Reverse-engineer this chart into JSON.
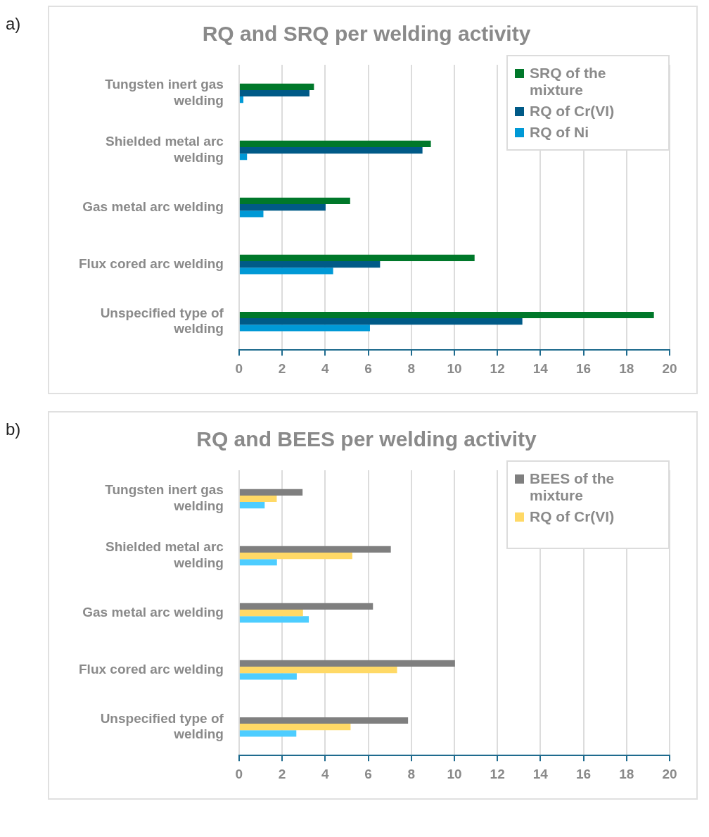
{
  "chart_data": [
    {
      "type": "bar",
      "orientation": "horizontal",
      "title": "RQ and SRQ per welding activity",
      "annotations": [
        "a)"
      ],
      "categories": [
        "Tungsten inert gas welding",
        "Shielded metal arc welding",
        "Gas metal arc welding",
        "Flux cored arc welding",
        "Unspecified type of welding"
      ],
      "series": [
        {
          "name": "SRQ of the mixture",
          "color": "#00782a",
          "values": [
            3.48,
            8.91,
            5.16,
            10.94,
            19.27
          ]
        },
        {
          "name": "RQ of Cr(VI)",
          "color": "#005a87",
          "values": [
            3.27,
            8.52,
            4.02,
            6.55,
            13.16
          ]
        },
        {
          "name": "RQ of Ni",
          "color": "#0099d6",
          "values": [
            0.2,
            0.37,
            1.13,
            4.37,
            6.08
          ]
        }
      ],
      "xlim": [
        0,
        20
      ],
      "xticks": [
        0,
        2,
        4,
        6,
        8,
        10,
        12,
        14,
        16,
        18,
        20
      ],
      "grid": "x",
      "legend": "top right"
    },
    {
      "type": "bar",
      "orientation": "horizontal",
      "title": "RQ and BEES per welding activity",
      "annotations": [
        "b)"
      ],
      "categories": [
        "Tungsten inert gas welding",
        "Shielded metal arc welding",
        "Gas metal arc welding",
        "Flux cored arc welding",
        "Unspecified type of welding"
      ],
      "series": [
        {
          "name": "BEES of the mixture",
          "color": "#7f7f7f",
          "values": [
            2.95,
            7.05,
            6.22,
            10.03,
            7.85
          ]
        },
        {
          "name": "RQ of Cr(VI)",
          "color": "#ffd966",
          "values": [
            1.75,
            5.26,
            2.97,
            7.34,
            5.18
          ]
        },
        {
          "color": "#4dcdff",
          "values": [
            1.19,
            1.76,
            3.24,
            2.68,
            2.66
          ]
        }
      ],
      "xlim": [
        0,
        20
      ],
      "xticks": [
        0,
        2,
        4,
        6,
        8,
        10,
        12,
        14,
        16,
        18,
        20
      ],
      "grid": "x",
      "legend": "top right"
    }
  ]
}
